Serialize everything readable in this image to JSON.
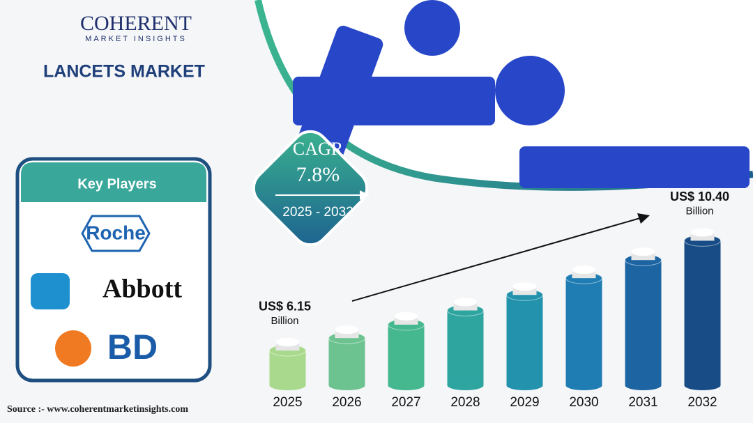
{
  "header": {
    "brand": "COHERENT",
    "brand_sub": "MARKET INSIGHTS",
    "title": "LANCETS MARKET"
  },
  "key_players": {
    "title": "Key Players",
    "items": [
      "Roche",
      "Abbott",
      "BD"
    ]
  },
  "cagr": {
    "label": "CAGR",
    "value": "7.8%",
    "period": "2025 - 2032"
  },
  "source": "Source :- www.coherentmarketinsights.com",
  "chart_data": {
    "type": "bar",
    "categories": [
      "2025",
      "2026",
      "2027",
      "2028",
      "2029",
      "2030",
      "2031",
      "2032"
    ],
    "values": [
      6.15,
      6.63,
      7.15,
      7.7,
      8.3,
      8.95,
      9.65,
      10.4
    ],
    "value_labels": [
      "US$ 6.15",
      null,
      null,
      null,
      null,
      null,
      null,
      "US$ 10.40"
    ],
    "value_label_unit": "Billion",
    "colors": [
      "#a9d98c",
      "#6cc38f",
      "#45b88f",
      "#2fa5a0",
      "#2392ad",
      "#1f7db3",
      "#1d64a3",
      "#184c86"
    ],
    "ylim": [
      4.8,
      10.6
    ]
  }
}
